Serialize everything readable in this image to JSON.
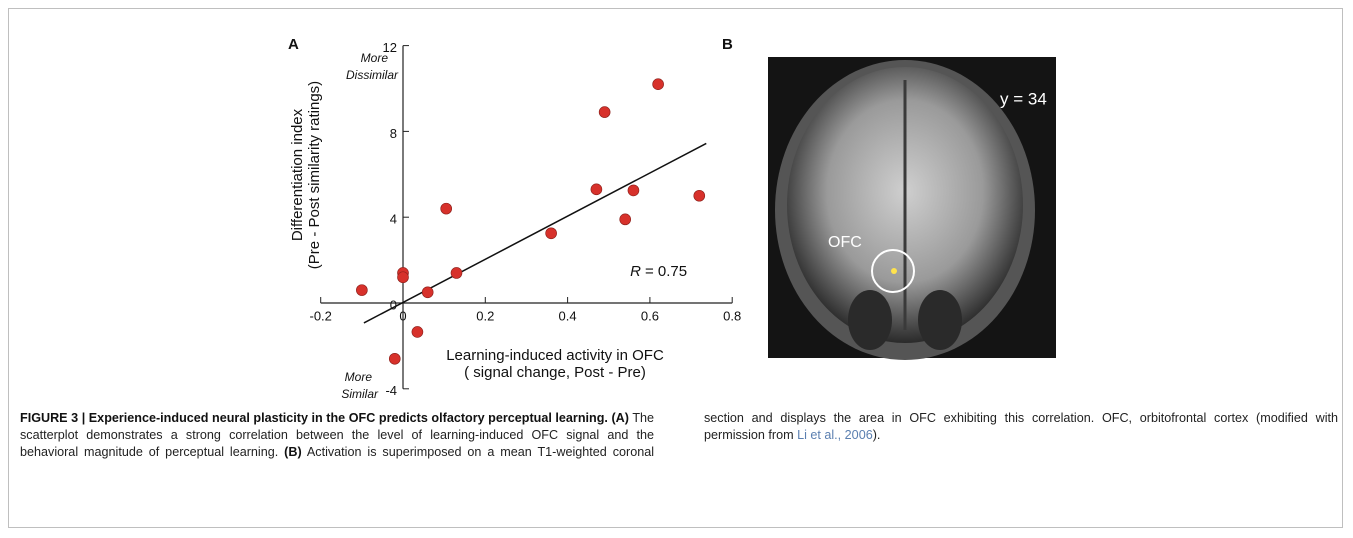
{
  "chart_data": {
    "type": "scatter",
    "panel": "A",
    "y_label": [
      "Differentiation index",
      "(Pre - Post similarity ratings)"
    ],
    "x_label": [
      "Learning-induced activity in OFC",
      "( signal change, Post - Pre)"
    ],
    "annotations": {
      "top": [
        "More",
        "Dissimilar"
      ],
      "bottom": [
        "More",
        "Similar"
      ],
      "r_symbol": "R",
      "r_value": "= 0.75"
    },
    "color": "#d7312b",
    "x": [
      -0.1,
      0.0,
      0.0,
      0.06,
      0.13,
      0.105,
      0.035,
      -0.02,
      0.36,
      0.47,
      0.49,
      0.54,
      0.56,
      0.62,
      0.72
    ],
    "values": [
      0.6,
      1.4,
      1.2,
      0.5,
      1.4,
      4.4,
      -1.35,
      -2.6,
      3.25,
      5.3,
      8.9,
      3.9,
      5.25,
      10.2,
      5.0
    ],
    "trendline": {
      "x": [
        -0.095,
        0.737
      ],
      "y": [
        -0.93,
        7.44
      ]
    },
    "xlim": [
      -0.2,
      0.8
    ],
    "ylim": [
      -4,
      12
    ],
    "xticks": [
      -0.2,
      0,
      0.2,
      0.4,
      0.6,
      0.8
    ],
    "yticks": [
      -4,
      0,
      4,
      8,
      12
    ]
  },
  "image_panel": {
    "panel": "B",
    "coordinate": "y = 34",
    "region": "OFC"
  },
  "caption": {
    "figure": "FIGURE 3 | Experience-induced neural plasticity in the OFC predicts olfactory perceptual learning.",
    "a_label": "(A)",
    "a_text": "The scatterplot demonstrates a strong correlation between the level of learning-induced OFC signal and the behavioral magnitude of perceptual learning.",
    "b_label": "(B)",
    "b_text": "Activation is superimposed on a mean T1-weighted coronal section and displays the area in OFC exhibiting this correlation. OFC, orbitofrontal cortex (modified with permission from",
    "citation": "Li et al., 2006",
    "end": ")."
  }
}
